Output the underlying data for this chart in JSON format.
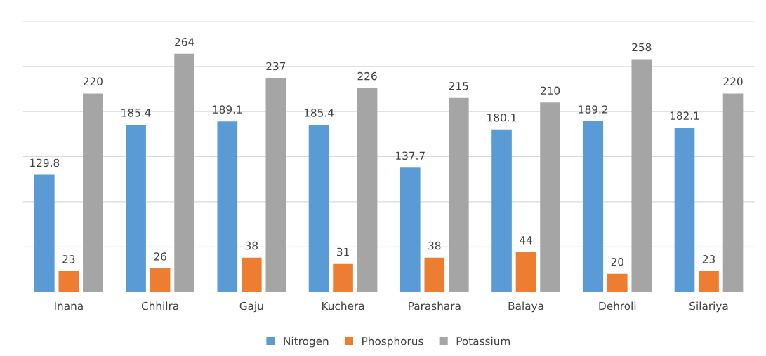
{
  "chart_data": {
    "type": "bar",
    "categories": [
      "Inana",
      "Chhilra",
      "Gaju",
      "Kuchera",
      "Parashara",
      "Balaya",
      "Dehroli",
      "Silariya"
    ],
    "series": [
      {
        "name": "Nitrogen",
        "color": "#5b9bd5",
        "values": [
          129.8,
          185.4,
          189.1,
          185.4,
          137.7,
          180.1,
          189.2,
          182.1
        ]
      },
      {
        "name": "Phosphorus",
        "color": "#ed7d31",
        "values": [
          23,
          26,
          38,
          31,
          38,
          44,
          20,
          23
        ]
      },
      {
        "name": "Potassium",
        "color": "#a5a5a5",
        "values": [
          220,
          264,
          237,
          226,
          215,
          210,
          258,
          220
        ]
      }
    ],
    "ylim": [
      0,
      300
    ],
    "yticks": [
      {
        "value": 0,
        "label": null
      },
      {
        "value": 50,
        "label": null
      },
      {
        "value": 100,
        "label": null
      },
      {
        "value": 150,
        "label": null
      },
      {
        "value": 200,
        "label": null
      },
      {
        "value": 250,
        "label": null
      },
      {
        "value": 300,
        "label": null
      }
    ],
    "tick_labels": "x",
    "grid": "y",
    "legend": "bottom",
    "data_labels": true
  }
}
